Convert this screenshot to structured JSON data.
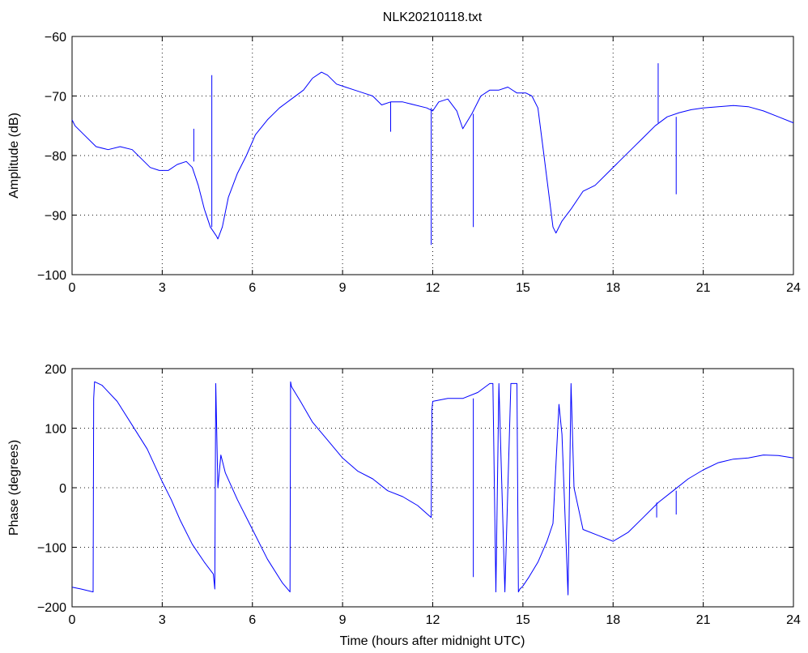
{
  "figure_title": "NLK20210118.txt",
  "colors": {
    "line": "#0000ff",
    "axes": "#000000",
    "background": "#ffffff"
  },
  "chart_data": [
    {
      "type": "line",
      "title": "NLK20210118.txt",
      "xlabel": "",
      "ylabel": "Amplitude (dB)",
      "xlim": [
        0,
        24
      ],
      "ylim": [
        -100,
        -60
      ],
      "xticks": [
        0,
        3,
        6,
        9,
        12,
        15,
        18,
        21,
        24
      ],
      "yticks": [
        -100,
        -90,
        -80,
        -70,
        -60
      ],
      "grid": true,
      "series": [
        {
          "x": [
            0,
            0.1,
            0.4,
            0.8,
            1.2,
            1.6,
            2.0,
            2.3,
            2.6,
            2.9,
            3.2,
            3.5,
            3.8,
            4.0,
            4.2,
            4.4,
            4.6,
            4.8,
            4.85,
            5.0,
            5.2,
            5.5,
            5.8,
            6.1,
            6.5,
            6.9,
            7.3,
            7.7,
            8.0,
            8.3,
            8.5,
            8.8,
            9.1,
            9.4,
            9.7,
            10.0,
            10.3,
            10.6,
            11.0,
            11.4,
            11.8,
            12.0,
            12.2,
            12.5,
            12.8,
            13.0,
            13.3,
            13.6,
            13.9,
            14.2,
            14.5,
            14.8,
            15.1,
            15.3,
            15.5,
            15.7,
            15.9,
            16.0,
            16.1,
            16.3,
            16.6,
            17.0,
            17.4,
            17.8,
            18.2,
            18.6,
            19.0,
            19.4,
            19.8,
            20.2,
            20.6,
            21.0,
            21.5,
            22.0,
            22.5,
            23.0,
            23.5,
            24.0
          ],
          "y": [
            -74,
            -75,
            -76.5,
            -78.5,
            -79,
            -78.5,
            -79,
            -80.5,
            -82,
            -82.5,
            -82.5,
            -81.5,
            -81,
            -82,
            -85,
            -89,
            -92,
            -93.5,
            -94,
            -92,
            -87,
            -83,
            -80,
            -76.5,
            -74,
            -72,
            -70.5,
            -69,
            -67,
            -66,
            -66.5,
            -68,
            -68.5,
            -69,
            -69.5,
            -70,
            -71.5,
            -71,
            -71,
            -71.5,
            -72,
            -72.5,
            -71,
            -70.5,
            -72.5,
            -75.5,
            -73,
            -70,
            -69,
            -69,
            -68.5,
            -69.5,
            -69.5,
            -70,
            -72,
            -80,
            -88,
            -92,
            -93,
            -91,
            -89,
            -86,
            -85,
            -83,
            -81,
            -79,
            -77,
            -75,
            -73.5,
            -72.8,
            -72.3,
            -72,
            -71.8,
            -71.6,
            -71.8,
            -72.5,
            -73.5,
            -74.5
          ]
        }
      ],
      "spikes": [
        {
          "x": 4.05,
          "y_from": -81,
          "y_to": -75.5
        },
        {
          "x": 4.65,
          "y_from": -92,
          "y_to": -66.5
        },
        {
          "x": 10.6,
          "y_from": -71,
          "y_to": -76
        },
        {
          "x": 11.95,
          "y_from": -72,
          "y_to": -95
        },
        {
          "x": 13.35,
          "y_from": -73,
          "y_to": -92
        },
        {
          "x": 19.5,
          "y_from": -74.5,
          "y_to": -64.5
        },
        {
          "x": 20.1,
          "y_from": -73.5,
          "y_to": -86.5
        }
      ]
    },
    {
      "type": "line",
      "title": "",
      "xlabel": "Time (hours after midnight UTC)",
      "ylabel": "Phase (degrees)",
      "xlim": [
        0,
        24
      ],
      "ylim": [
        -200,
        200
      ],
      "xticks": [
        0,
        3,
        6,
        9,
        12,
        15,
        18,
        21,
        24
      ],
      "yticks": [
        -200,
        -100,
        0,
        100,
        200
      ],
      "grid": true,
      "series": [
        {
          "x": [
            0,
            0.3,
            0.7,
            0.72,
            0.75,
            1.0,
            1.5,
            2.0,
            2.5,
            3.0,
            3.3,
            3.6,
            4.0,
            4.4,
            4.7,
            4.75,
            4.78,
            4.85,
            4.95,
            5.1,
            5.5,
            6.0,
            6.5,
            7.0,
            7.25,
            7.27,
            7.3,
            7.6,
            8.0,
            8.5,
            9.0,
            9.5,
            10.0,
            10.5,
            11.0,
            11.5,
            11.95,
            11.97,
            12.0,
            12.5,
            13.0,
            13.5,
            13.9,
            14.0,
            14.1,
            14.2,
            14.4,
            14.6,
            14.8,
            14.85,
            14.9,
            15.0,
            15.2,
            15.5,
            15.8,
            16.0,
            16.2,
            16.3,
            16.5,
            16.6,
            16.7,
            17.0,
            17.5,
            18.0,
            18.5,
            19.0,
            19.5,
            20.0,
            20.5,
            21.0,
            21.5,
            22.0,
            22.5,
            23.0,
            23.5,
            24.0
          ],
          "y": [
            -167,
            -170,
            -175,
            150,
            178,
            172,
            145,
            105,
            65,
            10,
            -20,
            -55,
            -95,
            -125,
            -145,
            -170,
            175,
            0,
            55,
            25,
            -20,
            -70,
            -120,
            -160,
            -175,
            178,
            170,
            145,
            110,
            80,
            50,
            28,
            15,
            -5,
            -15,
            -30,
            -50,
            130,
            145,
            150,
            150,
            160,
            175,
            175,
            -175,
            175,
            -175,
            175,
            175,
            -175,
            -170,
            -165,
            -150,
            -125,
            -90,
            -60,
            140,
            90,
            -180,
            175,
            0,
            -70,
            -80,
            -90,
            -75,
            -50,
            -25,
            -5,
            15,
            30,
            42,
            48,
            50,
            55,
            54,
            50
          ]
        }
      ],
      "spikes": [
        {
          "x": 13.35,
          "y_from": 150,
          "y_to": -150
        },
        {
          "x": 19.45,
          "y_from": -25,
          "y_to": -50
        },
        {
          "x": 20.1,
          "y_from": -5,
          "y_to": -45
        }
      ]
    }
  ]
}
